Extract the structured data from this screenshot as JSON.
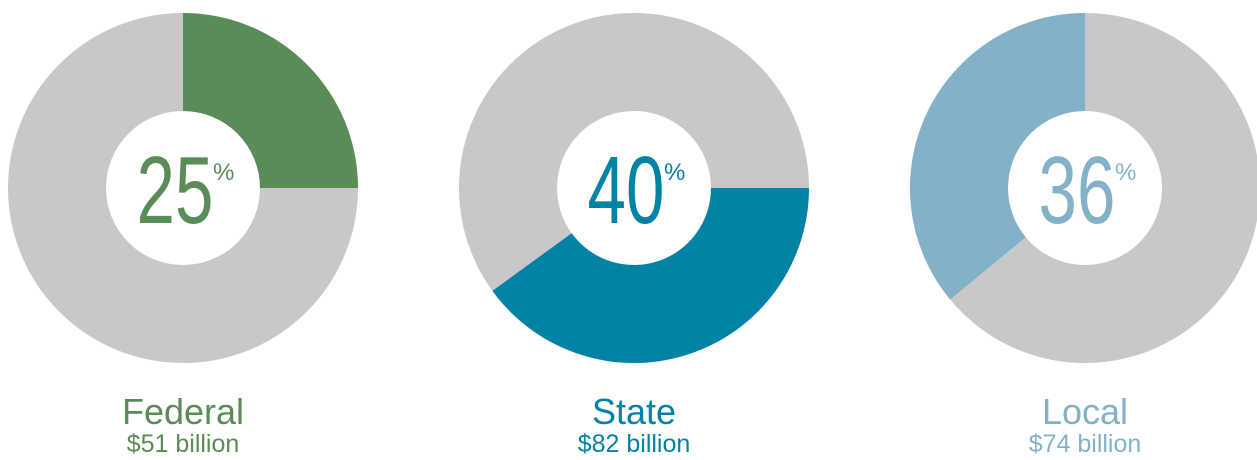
{
  "chart_data": [
    {
      "type": "donut",
      "title": "Federal",
      "subtitle": "$51 billion",
      "values": [
        25
      ],
      "unit": "%",
      "color": "#5a8c58",
      "rest_color": "#c8c8ca"
    },
    {
      "type": "donut",
      "title": "State",
      "subtitle": "$82 billion",
      "values": [
        40
      ],
      "unit": "%",
      "color": "#0083a4",
      "rest_color": "#c8c8ca"
    },
    {
      "type": "donut",
      "title": "Local",
      "subtitle": "$74 billion",
      "values": [
        36
      ],
      "unit": "%",
      "color": "#83b2c8",
      "rest_color": "#c8c8ca"
    }
  ]
}
